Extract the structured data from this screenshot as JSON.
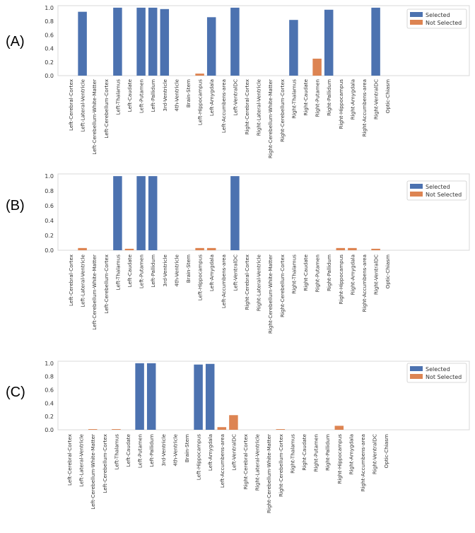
{
  "figure": {
    "colors": {
      "selected": "#4c72b0",
      "not_selected": "#dd8452",
      "axes": "#d8d8d8"
    }
  },
  "chart_data": [
    {
      "type": "bar",
      "panel": "(A)",
      "categories": [
        "Left-Cerebral-Cortex",
        "Left-Lateral-Ventricle",
        "Left-Cerebellum-White-Matter",
        "Left-Cerebellum-Cortex",
        "Left-Thalamus",
        "Left-Caudate",
        "Left-Putamen",
        "Left-Pallidum",
        "3rd-Ventricle",
        "4th-Ventricle",
        "Brain-Stem",
        "Left-Hippocampus",
        "Left-Amygdala",
        "Left-Accumbens-area",
        "Left-VentralDC",
        "Right-Cerebral-Cortex",
        "Right-Lateral-Ventricle",
        "Right-Cerebellum-White-Matter",
        "Right-Cerebellum-Cortex",
        "Right-Thalamus",
        "Right-Caudate",
        "Right-Putamen",
        "Right-Pallidum",
        "Right-Hippocampus",
        "Right-Amygdala",
        "Right-Accumbens-area",
        "Right-VentralDC",
        "Optic-Chiasm"
      ],
      "series": [
        {
          "name": "Selected",
          "values": [
            0,
            0.94,
            0,
            0,
            1.0,
            0,
            1.0,
            1.0,
            0.98,
            0,
            0,
            0,
            0.86,
            0,
            1.0,
            0,
            0,
            0,
            0,
            0.82,
            0,
            0,
            0.97,
            0,
            0,
            0,
            1.0,
            0
          ]
        },
        {
          "name": "Not Selected",
          "values": [
            0,
            0,
            0,
            0,
            0,
            0,
            0,
            0,
            0,
            0,
            0,
            0.03,
            0,
            0,
            0,
            0,
            0,
            0,
            0,
            0,
            0,
            0.25,
            0,
            0,
            0,
            0,
            0,
            0
          ]
        }
      ],
      "yticks": [
        "0.0",
        "0.2",
        "0.4",
        "0.6",
        "0.8",
        "1.0"
      ],
      "ylim": [
        0,
        1.03
      ],
      "legend": [
        "Selected",
        "Not Selected"
      ],
      "legend_loc": "top-right"
    },
    {
      "type": "bar",
      "panel": "(B)",
      "categories": [
        "Left-Cerebral-Cortex",
        "Left-Lateral-Ventricle",
        "Left-Cerebellum-White-Matter",
        "Left-Cerebellum-Cortex",
        "Left-Thalamus",
        "Left-Caudate",
        "Left-Putamen",
        "Left-Pallidum",
        "3rd-Ventricle",
        "4th-Ventricle",
        "Brain-Stem",
        "Left-Hippocampus",
        "Left-Amygdala",
        "Left-Accumbens-area",
        "Left-VentralDC",
        "Right-Cerebral-Cortex",
        "Right-Lateral-Ventricle",
        "Right-Cerebellum-White-Matter",
        "Right-Cerebellum-Cortex",
        "Right-Thalamus",
        "Right-Caudate",
        "Right-Putamen",
        "Right-Pallidum",
        "Right-Hippocampus",
        "Right-Amygdala",
        "Right-Accumbens-area",
        "Right-VentralDC",
        "Optic-Chiasm"
      ],
      "series": [
        {
          "name": "Selected",
          "values": [
            0,
            0,
            0,
            0,
            1.0,
            0,
            1.0,
            1.0,
            0,
            0,
            0,
            0,
            0,
            0,
            1.0,
            0,
            0,
            0,
            0,
            0,
            0,
            0,
            0,
            0,
            0,
            0,
            0,
            0
          ]
        },
        {
          "name": "Not Selected",
          "values": [
            0,
            0.03,
            0,
            0,
            0,
            0.02,
            0,
            0,
            0,
            0,
            0,
            0.03,
            0.03,
            0,
            0,
            0,
            0,
            0,
            0,
            0,
            0,
            0,
            0,
            0.03,
            0.03,
            0,
            0.02,
            0
          ]
        }
      ],
      "yticks": [
        "0.0",
        "0.2",
        "0.4",
        "0.6",
        "0.8",
        "1.0"
      ],
      "ylim": [
        0,
        1.03
      ],
      "legend": [
        "Selected",
        "Not Selected"
      ],
      "legend_loc": "top-right"
    },
    {
      "type": "bar",
      "panel": "(C)",
      "categories": [
        "Left-Cerebral-Cortex",
        "Left-Lateral-Ventricle",
        "Left-Cerebellum-White-Matter",
        "Left-Cerebellum-Cortex",
        "Left-Thalamus",
        "Left-Caudate",
        "Left-Putamen",
        "Left-Pallidum",
        "3rd-Ventricle",
        "4th-Ventricle",
        "Brain-Stem",
        "Left-Hippocampus",
        "Left-Amygdala",
        "Left-Accumbens-area",
        "Left-VentralDC",
        "Right-Cerebral-Cortex",
        "Right-Lateral-Ventricle",
        "Right-Cerebellum-White-Matter",
        "Right-Cerebellum-Cortex",
        "Right-Thalamus",
        "Right-Caudate",
        "Right-Putamen",
        "Right-Pallidum",
        "Right-Hippocampus",
        "Right-Amygdala",
        "Right-Accumbens-area",
        "Right-VentralDC",
        "Optic-Chiasm"
      ],
      "series": [
        {
          "name": "Selected",
          "values": [
            0,
            0,
            0,
            0,
            0,
            0,
            1.0,
            1.0,
            0,
            0,
            0,
            0.98,
            0.99,
            0,
            0,
            0,
            0,
            0,
            0,
            0,
            0,
            0,
            0,
            0,
            0,
            0,
            0,
            0
          ]
        },
        {
          "name": "Not Selected",
          "values": [
            0,
            0,
            0.01,
            0,
            0.01,
            0,
            0,
            0,
            0,
            0,
            0,
            0,
            0,
            0.04,
            0.22,
            0,
            0,
            0,
            0.01,
            0,
            0,
            0,
            0,
            0.06,
            0,
            0,
            0,
            0
          ]
        }
      ],
      "yticks": [
        "0.0",
        "0.2",
        "0.4",
        "0.6",
        "0.8",
        "1.0"
      ],
      "ylim": [
        0,
        1.03
      ],
      "legend": [
        "Selected",
        "Not Selected"
      ],
      "legend_loc": "top-right"
    }
  ]
}
